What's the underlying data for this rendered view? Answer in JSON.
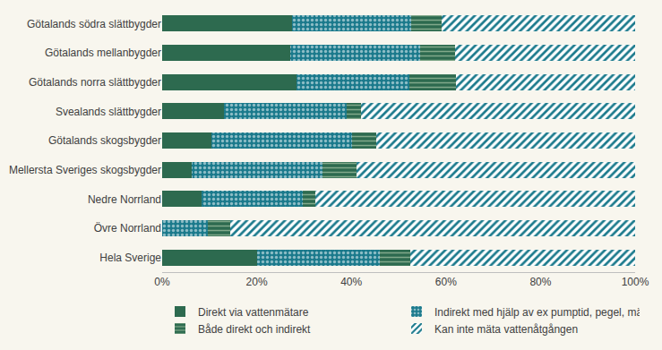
{
  "chart_data": {
    "type": "bar",
    "orientation": "horizontal",
    "stacked": true,
    "grid": false,
    "legend": "bottom",
    "categories": [
      "Götalands södra slättbygder",
      "Götalands mellanbygder",
      "Götalands norra slättbygder",
      "Svealands slättbygder",
      "Götalands skogsbygder",
      "Mellersta Sveriges skogsbygder",
      "Nedre Norrland",
      "Övre Norrland",
      "Hela Sverige"
    ],
    "series": [
      {
        "name": "Direkt via vattenmätare",
        "color": "#2d6a4f",
        "values": [
          27.4,
          27,
          28.4,
          13,
          10.5,
          6.3,
          8.4,
          0,
          20
        ]
      },
      {
        "name": "Indirekt med hjälp av ex pumptid, pegel, mätränna",
        "color": "#1b7a8c",
        "values": [
          25.2,
          27.5,
          23.8,
          26,
          29.7,
          27.6,
          21.3,
          9.7,
          26.1
        ]
      },
      {
        "name": "Både direkt och indirekt",
        "color": "#2d6a4f",
        "values": [
          6.5,
          7.5,
          9.9,
          3.1,
          5.1,
          7.2,
          2.7,
          4.6,
          6.3
        ]
      },
      {
        "name": "Kan inte mäta vattenåtgången",
        "color": "#1b7a8c",
        "values": [
          40.9,
          38,
          37.9,
          57.9,
          54.7,
          58.9,
          67.6,
          85.7,
          47.6
        ]
      }
    ],
    "xlim": [
      0,
      100
    ],
    "xticks": [
      {
        "value": 0,
        "label": "0%"
      },
      {
        "value": 20,
        "label": "20%"
      },
      {
        "value": 40,
        "label": "40%"
      },
      {
        "value": 60,
        "label": "60%"
      },
      {
        "value": 80,
        "label": "80%"
      },
      {
        "value": 100,
        "label": "100%"
      }
    ]
  }
}
